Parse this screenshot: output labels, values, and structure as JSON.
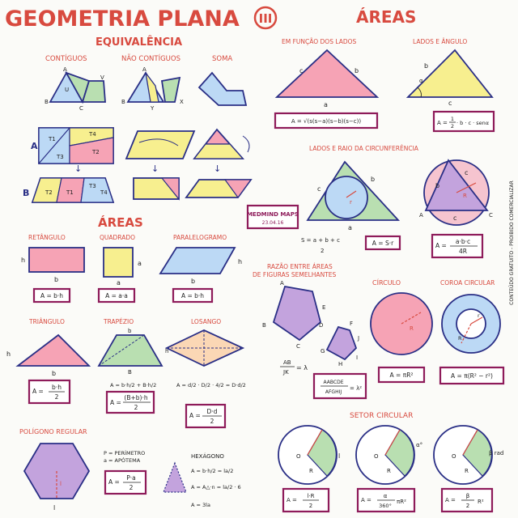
{
  "header": {
    "title": "GEOMETRIA PLANA",
    "part": "III",
    "subtitle": "ÁREAS"
  },
  "equivalencia": {
    "heading": "EQUIVALÊNCIA",
    "labels": {
      "contiguos": "CONTÍGUOS",
      "nao_contiguos": "NÃO CONTÍGUOS",
      "soma": "SOMA"
    },
    "fig_letters": {
      "a": "A",
      "b": "B",
      "c": "C",
      "u": "U",
      "v": "V",
      "x": "X",
      "y": "Y"
    },
    "row_a": {
      "label": "A",
      "t1": "T1",
      "t2": "T2",
      "t3": "T3",
      "t4": "T4"
    },
    "row_b": {
      "label": "B",
      "t1": "T1",
      "t2": "T2",
      "t3": "T3",
      "t4": "T4"
    }
  },
  "areas": {
    "heading": "ÁREAS",
    "retangulo": {
      "label": "RETÂNGULO",
      "h": "h",
      "b": "b",
      "formula": "A = b·h"
    },
    "quadrado": {
      "label": "QUADRADO",
      "a": "a",
      "formula": "A = a·a"
    },
    "paralelogramo": {
      "label": "PARALELOGRAMO",
      "h": "h",
      "b": "b",
      "formula": "A = b·h"
    },
    "triangulo": {
      "label": "TRIÂNGULO",
      "h": "h",
      "b": "b",
      "formula_top": "b·h",
      "formula_bottom": "2",
      "formula_a": "A ="
    },
    "trapezio": {
      "label": "TRAPÉZIO",
      "b_small": "b",
      "B_big": "B",
      "h": "h",
      "sum_line": "A = b·h/2 + B·h/2",
      "formula_top": "(B+b)·h",
      "formula_bottom": "2",
      "formula_a": "A ="
    },
    "losango": {
      "label": "LOSANGO",
      "deriv": "A = d/2 · D/2 · 4/2 = D·d/2",
      "formula_top": "D·d",
      "formula_bottom": "2",
      "formula_a": "A ="
    }
  },
  "poligono": {
    "label": "POLÍGONO REGULAR",
    "p_def": "P = PERÍMETRO",
    "a_def": "a = APÓTEMA",
    "l": "l",
    "formula_top": "P·a",
    "formula_bottom": "2",
    "formula_a": "A =",
    "hex_title": "HEXÁGONO",
    "hex_line1": "A = b·h/2 = la/2",
    "hex_line2": "A = A△·n = la/2 · 6",
    "hex_line3": "A = 3la"
  },
  "funcao_lados": {
    "label": "EM FUNÇÃO DOS LADOS",
    "a": "a",
    "b": "b",
    "c": "c",
    "formula": "A = √(s(s−a)(s−b)(s−c))"
  },
  "lados_angulo": {
    "label": "LADOS E ÂNGULO",
    "b": "b",
    "c": "c",
    "alpha": "α",
    "formula_a": "A =",
    "formula_frac_top": "1",
    "formula_frac_bottom": "2",
    "formula_rest": "· b · c · senα"
  },
  "circunferencia": {
    "label": "LADOS E RAIO DA CIRCUNFERÊNCIA",
    "a": "a",
    "b": "b",
    "c": "c",
    "r": "r",
    "R": "R",
    "s_formula_top": "S = a + b + c",
    "s_formula_bottom": "2",
    "formula_inscrita": "A = S·r",
    "formula_circ_top": "a·b·c",
    "formula_circ_bottom": "4R",
    "formula_a": "A ="
  },
  "stamp": {
    "line1": "MEDMIND MAPS",
    "line2": "23.04.16"
  },
  "razao": {
    "label_line1": "RAZÃO ENTRE ÁREAS",
    "label_line2": "DE FIGURAS SEMELHANTES",
    "letters": {
      "a": "A",
      "b": "B",
      "c": "C",
      "d": "D",
      "e": "E",
      "f": "F",
      "g": "G",
      "h": "H",
      "i": "I",
      "j": "J",
      "k": "K"
    },
    "ratio_top": "AB",
    "ratio_bottom": "JK",
    "ratio_eq": "= λ",
    "formula_top": "AABCDE",
    "formula_bottom": "AFGHIJ",
    "formula_eq": "= λ²"
  },
  "circulo": {
    "label": "CÍRCULO",
    "R": "R",
    "formula": "A = πR²"
  },
  "coroa": {
    "label": "COROA CIRCULAR",
    "R": "R",
    "r": "r",
    "formula": "A = π(R² − r²)"
  },
  "setor": {
    "label": "SETOR CIRCULAR",
    "o": "O",
    "R": "R",
    "l": "l",
    "alpha": "α°",
    "beta": "β rad",
    "f1_top": "l·R",
    "f1_bottom": "2",
    "f1_a": "A =",
    "f2_top": "α",
    "f2_bottom": "360°",
    "f2_rest": "πR²",
    "f2_a": "A =",
    "f3_top": "β",
    "f3_bottom": "2",
    "f3_rest": "R²",
    "f3_a": "A ="
  },
  "side_note": "CONTEÚDO GRATUITO - PROIBIDO COMERCIALIZAR",
  "colors": {
    "pink": "#f6a3b5",
    "yellow": "#f7ef8f",
    "blue": "#bcd9f5",
    "purple": "#c3a3dd",
    "green": "#b9dfb1",
    "red": "#d84a3f",
    "navy": "#2a2f86",
    "magenta": "#8e1b5a"
  }
}
